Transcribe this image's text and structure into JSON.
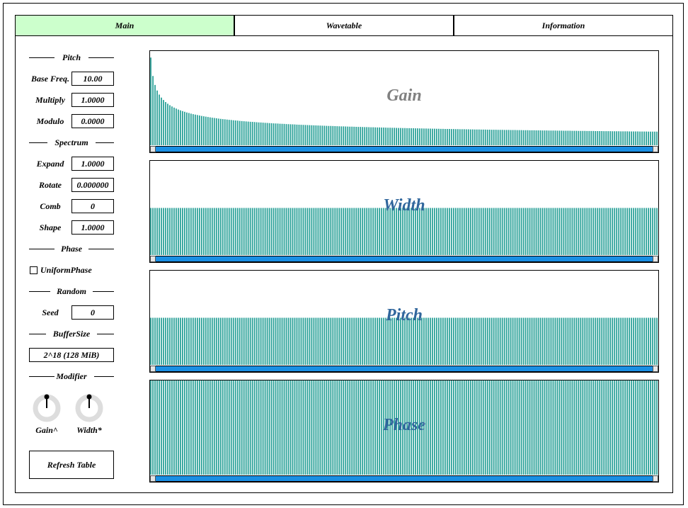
{
  "tabs": [
    {
      "label": "Main",
      "active": true
    },
    {
      "label": "Wavetable",
      "active": false
    },
    {
      "label": "Information",
      "active": false
    }
  ],
  "sidebar": {
    "sections": {
      "pitch": "Pitch",
      "spectrum": "Spectrum",
      "phase": "Phase",
      "random": "Random",
      "buffer_size": "BufferSize",
      "modifier": "Modifier"
    },
    "fields": {
      "base_freq": {
        "label": "Base Freq.",
        "value": "10.00"
      },
      "multiply": {
        "label": "Multiply",
        "value": "1.0000"
      },
      "modulo": {
        "label": "Modulo",
        "value": "0.0000"
      },
      "expand": {
        "label": "Expand",
        "value": "1.0000"
      },
      "rotate": {
        "label": "Rotate",
        "value": "0.000000"
      },
      "comb": {
        "label": "Comb",
        "value": "0"
      },
      "shape": {
        "label": "Shape",
        "value": "1.0000"
      },
      "seed": {
        "label": "Seed",
        "value": "0"
      }
    },
    "uniform_phase": {
      "label": "UniformPhase",
      "checked": false
    },
    "buffer_size_value": "2^18 (128 MiB)",
    "knobs": [
      {
        "label": "Gain^",
        "value": 0.5
      },
      {
        "label": "Width*",
        "value": 0.5
      }
    ],
    "refresh_label": "Refresh Table"
  },
  "editors": [
    {
      "title": "Gain",
      "title_color": "#808080",
      "profile": "decay",
      "level": 1.0
    },
    {
      "title": "Width",
      "title_color": "#30669c",
      "profile": "flat",
      "level": 0.5
    },
    {
      "title": "Pitch",
      "title_color": "#30669c",
      "profile": "flat",
      "level": 0.5
    },
    {
      "title": "Phase",
      "title_color": "#30669c",
      "profile": "flat",
      "level": 1.0
    }
  ],
  "colors": {
    "bar": "#2aa198",
    "scroll_track": "#1a8fe3",
    "active_tab": "#ccffcc"
  }
}
